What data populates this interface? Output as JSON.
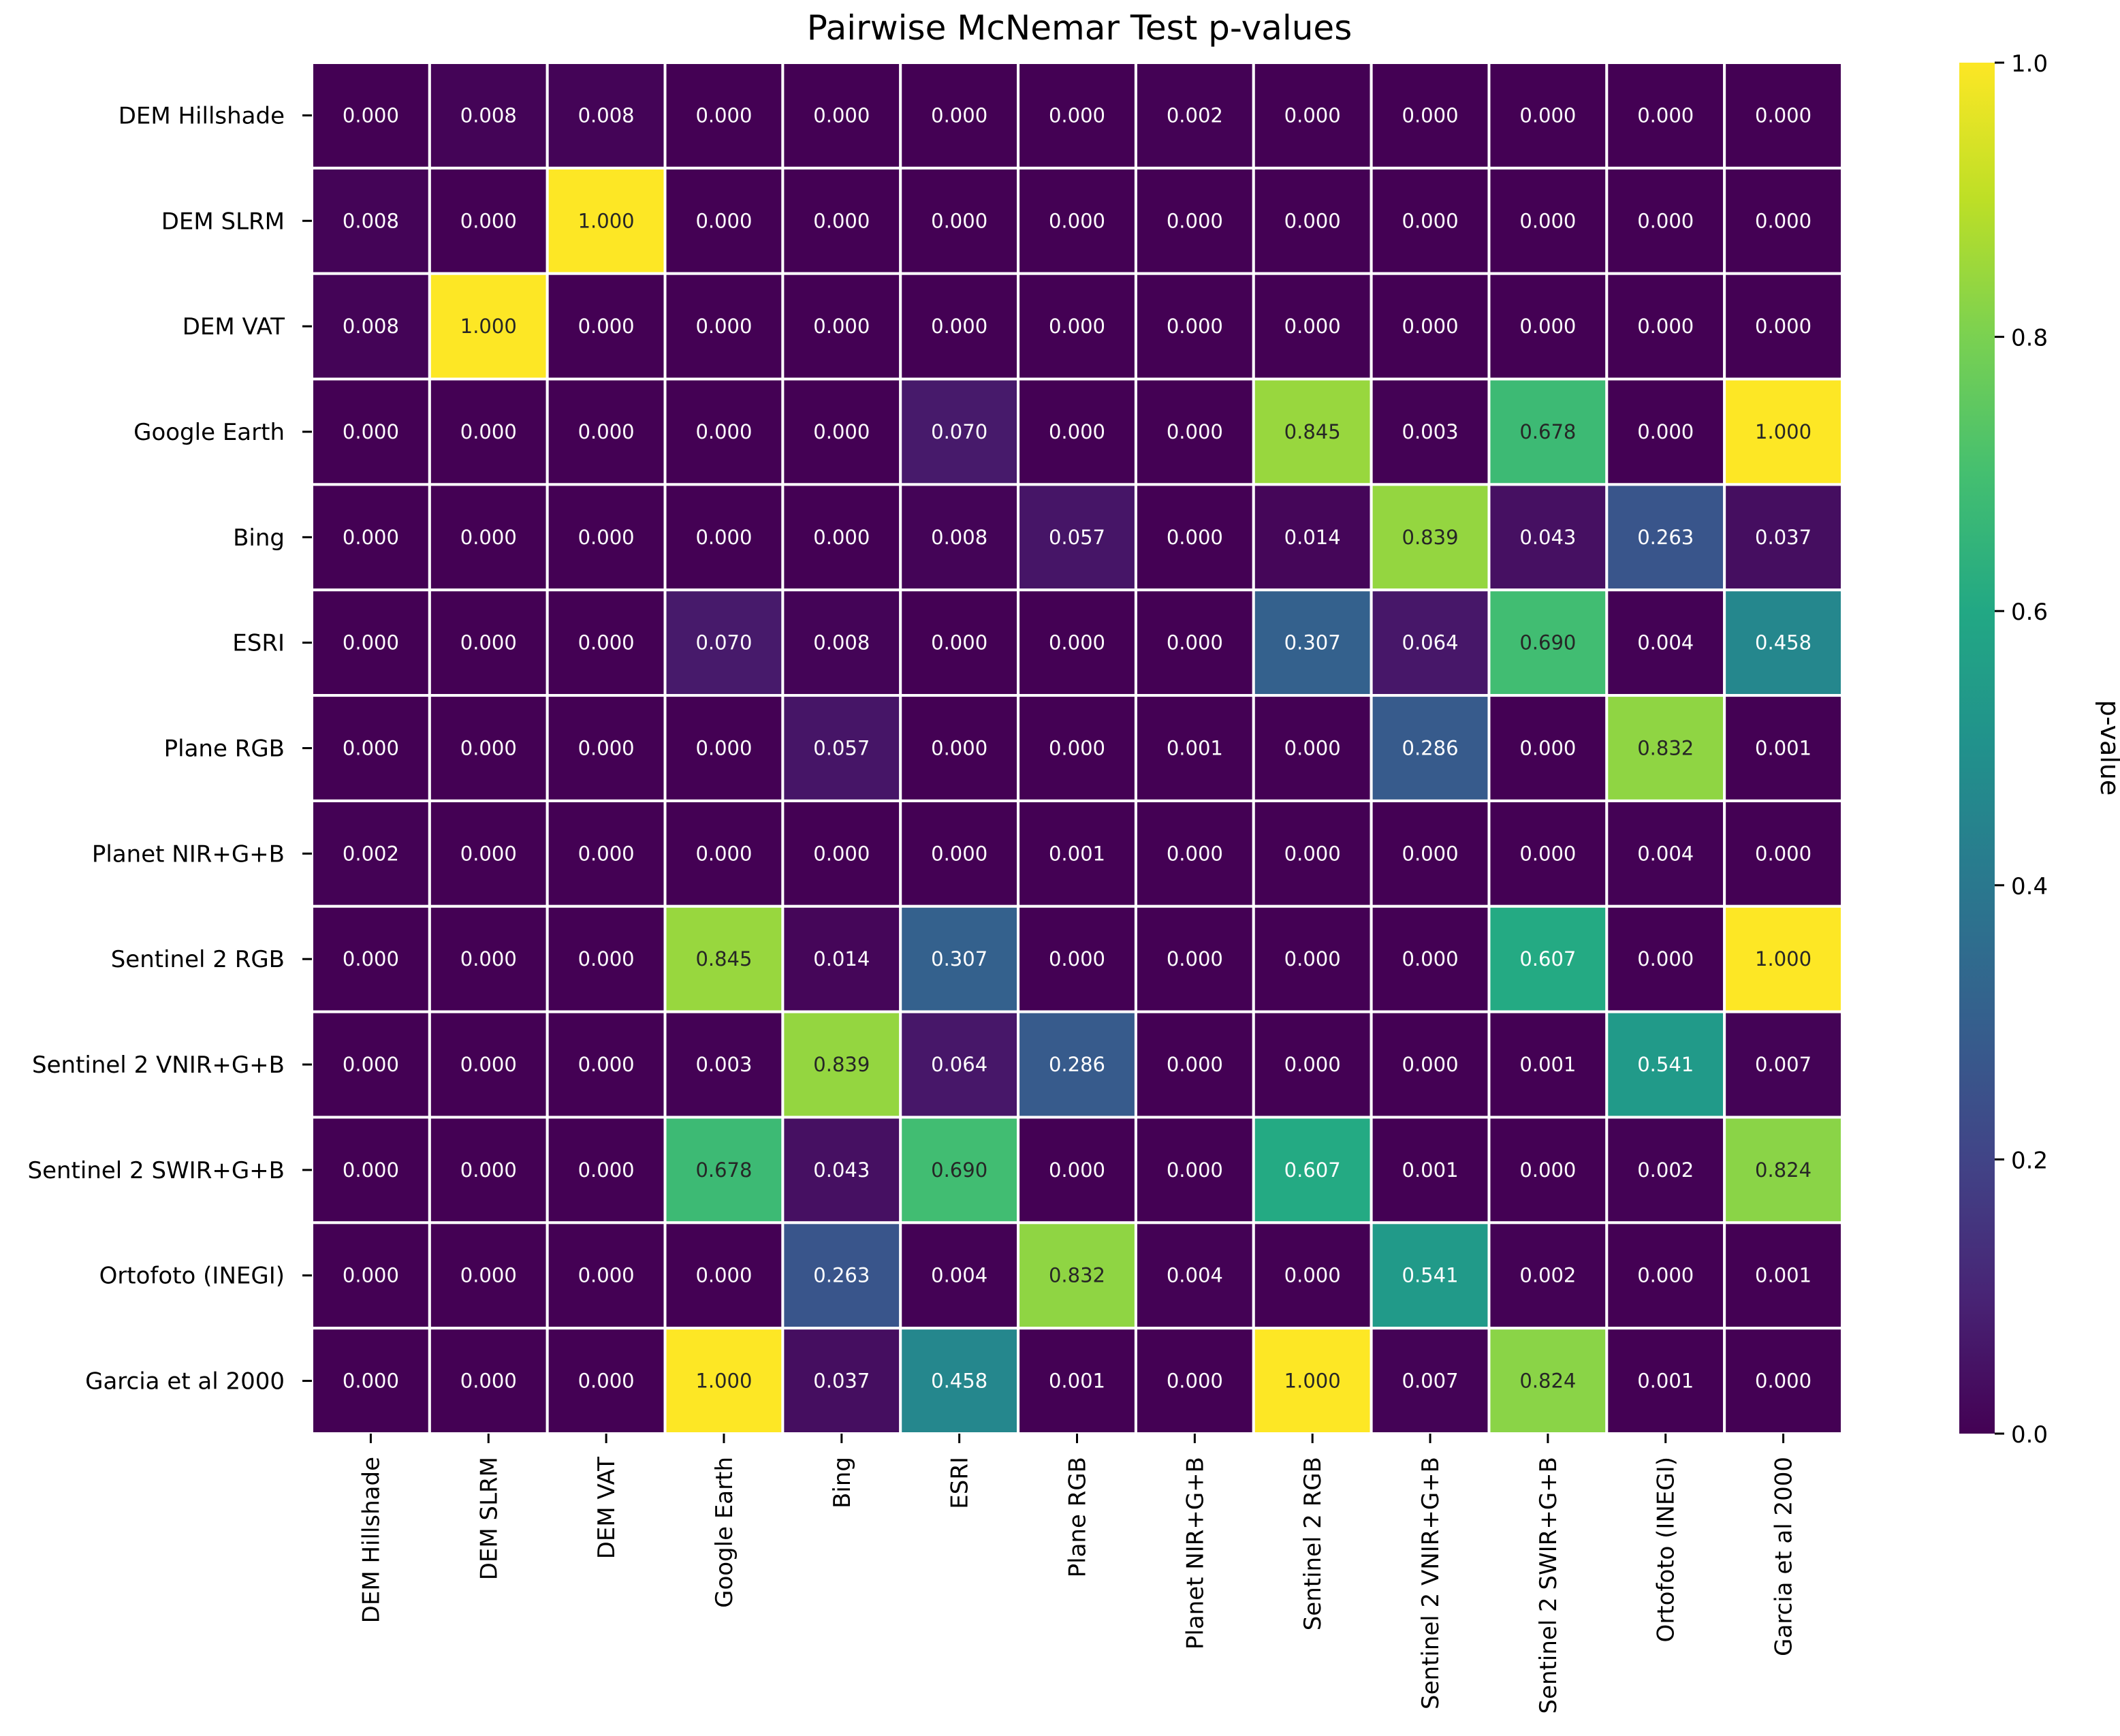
{
  "chart_data": {
    "type": "heatmap",
    "title": "Pairwise McNemar Test p-values",
    "row_labels": [
      "DEM Hillshade",
      "DEM SLRM",
      "DEM VAT",
      "Google Earth",
      "Bing",
      "ESRI",
      "Plane RGB",
      "Planet NIR+G+B",
      "Sentinel 2 RGB",
      "Sentinel 2 VNIR+G+B",
      "Sentinel 2 SWIR+G+B",
      "Ortofoto (INEGI)",
      "Garcia et al 2000"
    ],
    "col_labels": [
      "DEM Hillshade",
      "DEM SLRM",
      "DEM VAT",
      "Google Earth",
      "Bing",
      "ESRI",
      "Plane RGB",
      "Planet NIR+G+B",
      "Sentinel 2 RGB",
      "Sentinel 2 VNIR+G+B",
      "Sentinel 2 SWIR+G+B",
      "Ortofoto (INEGI)",
      "Garcia et al 2000"
    ],
    "values": [
      [
        "0.000",
        "0.008",
        "0.008",
        "0.000",
        "0.000",
        "0.000",
        "0.000",
        "0.002",
        "0.000",
        "0.000",
        "0.000",
        "0.000",
        "0.000"
      ],
      [
        "0.008",
        "0.000",
        "1.000",
        "0.000",
        "0.000",
        "0.000",
        "0.000",
        "0.000",
        "0.000",
        "0.000",
        "0.000",
        "0.000",
        "0.000"
      ],
      [
        "0.008",
        "1.000",
        "0.000",
        "0.000",
        "0.000",
        "0.000",
        "0.000",
        "0.000",
        "0.000",
        "0.000",
        "0.000",
        "0.000",
        "0.000"
      ],
      [
        "0.000",
        "0.000",
        "0.000",
        "0.000",
        "0.000",
        "0.070",
        "0.000",
        "0.000",
        "0.845",
        "0.003",
        "0.678",
        "0.000",
        "1.000"
      ],
      [
        "0.000",
        "0.000",
        "0.000",
        "0.000",
        "0.000",
        "0.008",
        "0.057",
        "0.000",
        "0.014",
        "0.839",
        "0.043",
        "0.263",
        "0.037"
      ],
      [
        "0.000",
        "0.000",
        "0.000",
        "0.070",
        "0.008",
        "0.000",
        "0.000",
        "0.000",
        "0.307",
        "0.064",
        "0.690",
        "0.004",
        "0.458"
      ],
      [
        "0.000",
        "0.000",
        "0.000",
        "0.000",
        "0.057",
        "0.000",
        "0.000",
        "0.001",
        "0.000",
        "0.286",
        "0.000",
        "0.832",
        "0.001"
      ],
      [
        "0.002",
        "0.000",
        "0.000",
        "0.000",
        "0.000",
        "0.000",
        "0.001",
        "0.000",
        "0.000",
        "0.000",
        "0.000",
        "0.004",
        "0.000"
      ],
      [
        "0.000",
        "0.000",
        "0.000",
        "0.845",
        "0.014",
        "0.307",
        "0.000",
        "0.000",
        "0.000",
        "0.000",
        "0.607",
        "0.000",
        "1.000"
      ],
      [
        "0.000",
        "0.000",
        "0.000",
        "0.003",
        "0.839",
        "0.064",
        "0.286",
        "0.000",
        "0.000",
        "0.000",
        "0.001",
        "0.541",
        "0.007"
      ],
      [
        "0.000",
        "0.000",
        "0.000",
        "0.678",
        "0.043",
        "0.690",
        "0.000",
        "0.000",
        "0.607",
        "0.001",
        "0.000",
        "0.002",
        "0.824"
      ],
      [
        "0.000",
        "0.000",
        "0.000",
        "0.000",
        "0.263",
        "0.004",
        "0.832",
        "0.004",
        "0.000",
        "0.541",
        "0.002",
        "0.000",
        "0.001"
      ],
      [
        "0.000",
        "0.000",
        "0.000",
        "1.000",
        "0.037",
        "0.458",
        "0.001",
        "0.000",
        "1.000",
        "0.007",
        "0.824",
        "0.001",
        "0.000"
      ]
    ],
    "colorbar": {
      "label": "p-value",
      "range": [
        0.0,
        1.0
      ],
      "ticks": [
        "0.0",
        "0.2",
        "0.4",
        "0.6",
        "0.8",
        "1.0"
      ],
      "colormap": "viridis"
    }
  }
}
